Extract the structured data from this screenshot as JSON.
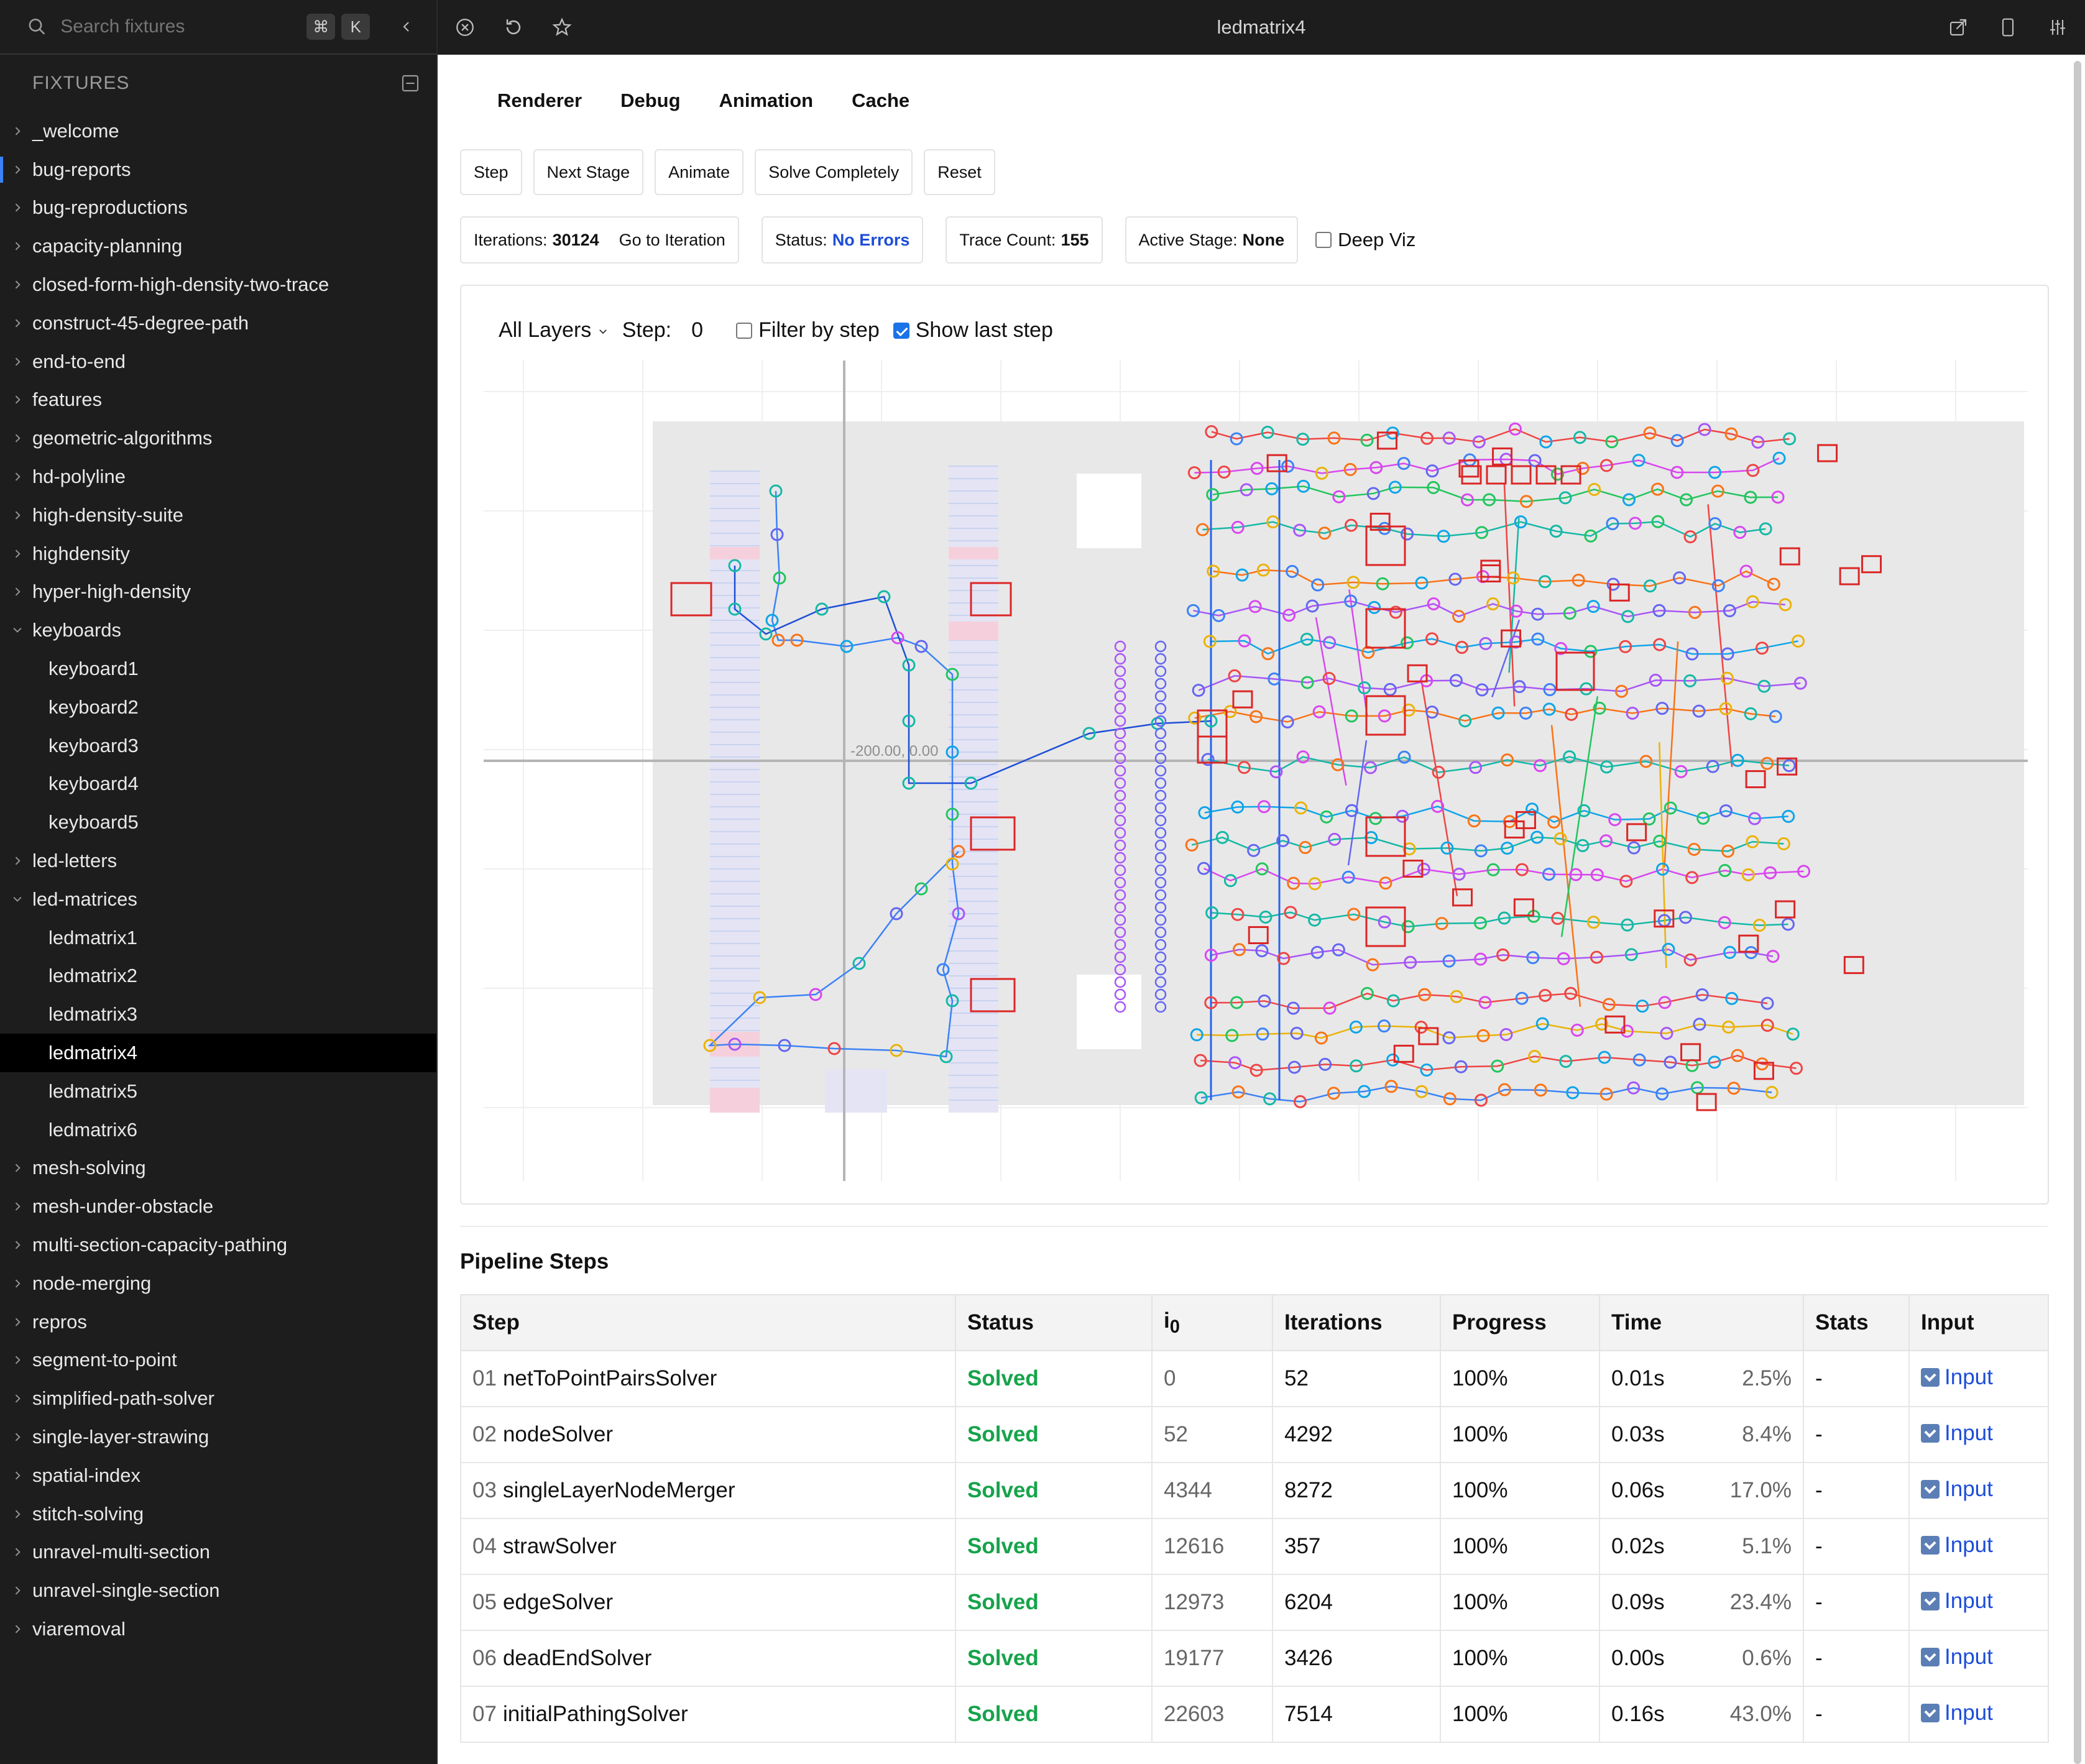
{
  "search": {
    "placeholder": "Search fixtures",
    "shortcut_mod": "⌘",
    "shortcut_key": "K"
  },
  "sidebar": {
    "section_label": "FIXTURES",
    "items": [
      {
        "label": "_welcome",
        "type": "folder"
      },
      {
        "label": "bug-reports",
        "type": "folder"
      },
      {
        "label": "bug-reproductions",
        "type": "folder"
      },
      {
        "label": "capacity-planning",
        "type": "folder"
      },
      {
        "label": "closed-form-high-density-two-trace",
        "type": "folder"
      },
      {
        "label": "construct-45-degree-path",
        "type": "folder"
      },
      {
        "label": "end-to-end",
        "type": "folder"
      },
      {
        "label": "features",
        "type": "folder"
      },
      {
        "label": "geometric-algorithms",
        "type": "folder"
      },
      {
        "label": "hd-polyline",
        "type": "folder"
      },
      {
        "label": "high-density-suite",
        "type": "folder"
      },
      {
        "label": "highdensity",
        "type": "folder"
      },
      {
        "label": "hyper-high-density",
        "type": "folder"
      },
      {
        "label": "keyboards",
        "type": "folder-open"
      },
      {
        "label": "keyboard1",
        "type": "child"
      },
      {
        "label": "keyboard2",
        "type": "child"
      },
      {
        "label": "keyboard3",
        "type": "child"
      },
      {
        "label": "keyboard4",
        "type": "child"
      },
      {
        "label": "keyboard5",
        "type": "child"
      },
      {
        "label": "led-letters",
        "type": "folder"
      },
      {
        "label": "led-matrices",
        "type": "folder-open"
      },
      {
        "label": "ledmatrix1",
        "type": "child"
      },
      {
        "label": "ledmatrix2",
        "type": "child"
      },
      {
        "label": "ledmatrix3",
        "type": "child"
      },
      {
        "label": "ledmatrix4",
        "type": "child",
        "selected": true
      },
      {
        "label": "ledmatrix5",
        "type": "child"
      },
      {
        "label": "ledmatrix6",
        "type": "child"
      },
      {
        "label": "mesh-solving",
        "type": "folder"
      },
      {
        "label": "mesh-under-obstacle",
        "type": "folder"
      },
      {
        "label": "multi-section-capacity-pathing",
        "type": "folder"
      },
      {
        "label": "node-merging",
        "type": "folder"
      },
      {
        "label": "repros",
        "type": "folder"
      },
      {
        "label": "segment-to-point",
        "type": "folder"
      },
      {
        "label": "simplified-path-solver",
        "type": "folder"
      },
      {
        "label": "single-layer-strawing",
        "type": "folder"
      },
      {
        "label": "spatial-index",
        "type": "folder"
      },
      {
        "label": "stitch-solving",
        "type": "folder"
      },
      {
        "label": "unravel-multi-section",
        "type": "folder"
      },
      {
        "label": "unravel-single-section",
        "type": "folder"
      },
      {
        "label": "viaremoval",
        "type": "folder"
      }
    ]
  },
  "topbar": {
    "title": "ledmatrix4"
  },
  "tabs": [
    "Renderer",
    "Debug",
    "Animation",
    "Cache"
  ],
  "buttons": [
    "Step",
    "Next Stage",
    "Animate",
    "Solve Completely",
    "Reset"
  ],
  "info": {
    "iterations_label": "Iterations:",
    "iterations_value": "30124",
    "goto_label": "Go to Iteration",
    "status_label": "Status:",
    "status_value": "No Errors",
    "trace_label": "Trace Count:",
    "trace_value": "155",
    "stage_label": "Active Stage:",
    "stage_value": "None",
    "deep_viz_label": "Deep Viz"
  },
  "viz": {
    "layers_label": "All Layers",
    "step_label": "Step:",
    "step_value": "0",
    "filter_label": "Filter by step",
    "show_last_label": "Show last step",
    "coord_label": "-200.00, 0.00"
  },
  "pipeline": {
    "title": "Pipeline Steps",
    "headers": {
      "step": "Step",
      "status": "Status",
      "i0": "i",
      "i0_sub": "0",
      "iterations": "Iterations",
      "progress": "Progress",
      "time": "Time",
      "stats": "Stats",
      "input": "Input"
    },
    "rows": [
      {
        "num": "01",
        "name": "netToPointPairsSolver",
        "status": "Solved",
        "i0": "0",
        "iterations": "52",
        "progress": "100%",
        "time": "0.01s",
        "pct": "2.5%",
        "stats": "-",
        "input": "Input"
      },
      {
        "num": "02",
        "name": "nodeSolver",
        "status": "Solved",
        "i0": "52",
        "iterations": "4292",
        "progress": "100%",
        "time": "0.03s",
        "pct": "8.4%",
        "stats": "-",
        "input": "Input"
      },
      {
        "num": "03",
        "name": "singleLayerNodeMerger",
        "status": "Solved",
        "i0": "4344",
        "iterations": "8272",
        "progress": "100%",
        "time": "0.06s",
        "pct": "17.0%",
        "stats": "-",
        "input": "Input"
      },
      {
        "num": "04",
        "name": "strawSolver",
        "status": "Solved",
        "i0": "12616",
        "iterations": "357",
        "progress": "100%",
        "time": "0.02s",
        "pct": "5.1%",
        "stats": "-",
        "input": "Input"
      },
      {
        "num": "05",
        "name": "edgeSolver",
        "status": "Solved",
        "i0": "12973",
        "iterations": "6204",
        "progress": "100%",
        "time": "0.09s",
        "pct": "23.4%",
        "stats": "-",
        "input": "Input"
      },
      {
        "num": "06",
        "name": "deadEndSolver",
        "status": "Solved",
        "i0": "19177",
        "iterations": "3426",
        "progress": "100%",
        "time": "0.00s",
        "pct": "0.6%",
        "stats": "-",
        "input": "Input"
      },
      {
        "num": "07",
        "name": "initialPathingSolver",
        "status": "Solved",
        "i0": "22603",
        "iterations": "7514",
        "progress": "100%",
        "time": "0.16s",
        "pct": "43.0%",
        "stats": "-",
        "input": "Input"
      }
    ]
  },
  "colors": {
    "accent": "#1d4ed8",
    "solved": "#16a34a",
    "sidebar_bg": "#1d1d1d"
  }
}
